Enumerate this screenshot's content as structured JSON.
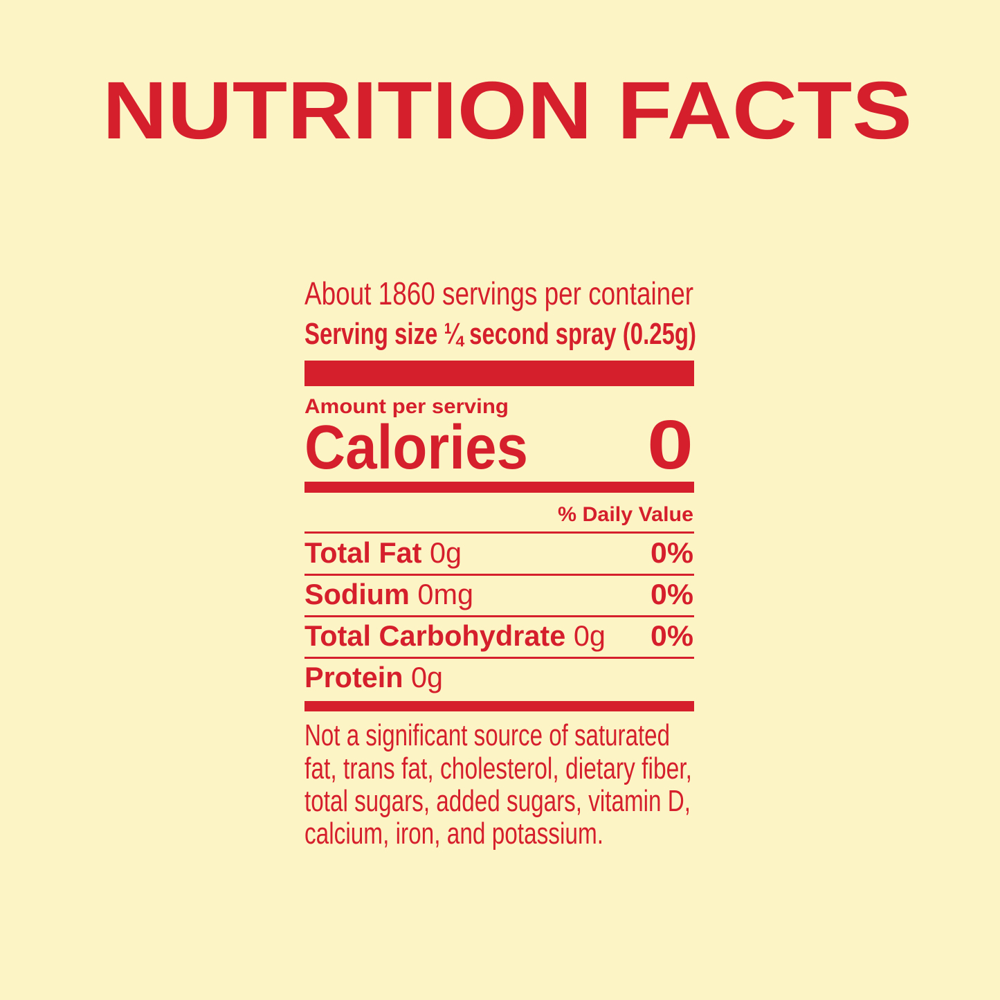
{
  "title": "NUTRITION FACTS",
  "label": {
    "servings": "About 1860 servings per container",
    "serving_size": "Serving size ¼ second spray (0.25g)",
    "amount_per_serving": "Amount per serving",
    "calories_label": "Calories",
    "calories_value": "0",
    "daily_value_header": "% Daily Value",
    "rows": [
      {
        "name": "Total Fat",
        "amount": "0g",
        "dv": "0%"
      },
      {
        "name": "Sodium",
        "amount": "0mg",
        "dv": "0%"
      },
      {
        "name": "Total Carbohydrate",
        "amount": "0g",
        "dv": "0%"
      },
      {
        "name": "Protein",
        "amount": "0g"
      }
    ],
    "footnote": [
      "Not a significant source of saturated",
      "fat, trans fat, cholesterol, dietary fiber,",
      "total sugars, added sugars, vitamin D,",
      "calcium, iron, and potassium."
    ]
  }
}
